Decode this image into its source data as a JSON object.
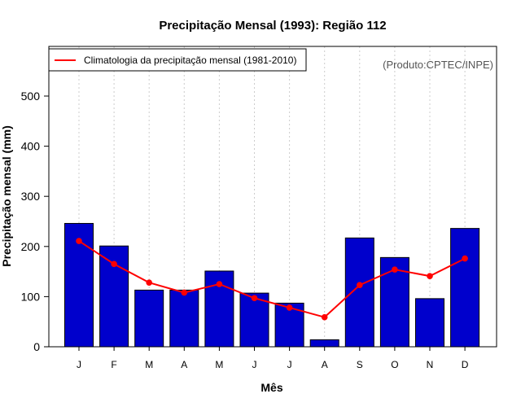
{
  "chart_data": {
    "type": "bar",
    "title": "Precipitação Mensal (1993): Região 112",
    "xlabel": "Mês",
    "ylabel": "Precipitação mensal (mm)",
    "ylim": [
      0,
      600
    ],
    "yticks": [
      0,
      100,
      200,
      300,
      400,
      500
    ],
    "categories": [
      "J",
      "F",
      "M",
      "A",
      "M",
      "J",
      "J",
      "A",
      "S",
      "O",
      "N",
      "D"
    ],
    "series": [
      {
        "name": "Precipitação mensal (1993)",
        "kind": "bar",
        "color": "#0000cc",
        "values": [
          246,
          201,
          113,
          113,
          151,
          107,
          87,
          14,
          217,
          178,
          96,
          236
        ]
      },
      {
        "name": "Climatologia da precipitação mensal (1981-2010)",
        "kind": "line",
        "color": "#ff0000",
        "values": [
          211,
          165,
          128,
          108,
          125,
          97,
          78,
          59,
          123,
          154,
          141,
          176
        ]
      }
    ],
    "legend_position": "top-left",
    "grid": "vertical-dotted",
    "credit": "(Produto:CPTEC/INPE)"
  }
}
